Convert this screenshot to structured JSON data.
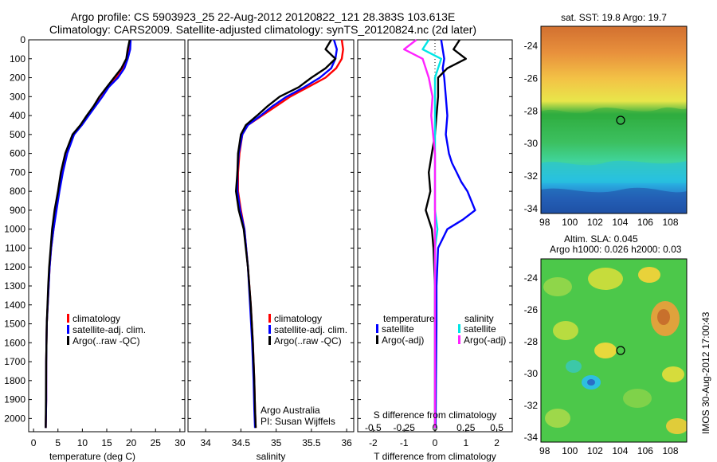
{
  "header": {
    "line1": "Argo profile: CS 5903923_25 22-Aug-2012 20120822_121 28.383S 103.613E",
    "line2": "Climatology: CARS2009. Satellite-adjusted climatology: synTS_20120824.nc (2d later)"
  },
  "colors": {
    "climatology": "#ff0000",
    "satellite": "#0000ff",
    "argo": "#000000",
    "sal_satellite": "#00e5e5",
    "sal_argo": "#ff22ff"
  },
  "depth_axis": {
    "ticks": [
      "0",
      "100",
      "200",
      "300",
      "400",
      "500",
      "600",
      "700",
      "800",
      "900",
      "1000",
      "1100",
      "1200",
      "1300",
      "1400",
      "1500",
      "1600",
      "1700",
      "1800",
      "1900",
      "2000"
    ],
    "ylim": [
      2070,
      0
    ]
  },
  "panels": {
    "temperature": {
      "xlabel": "temperature (deg C)",
      "xticks": [
        "0",
        "5",
        "10",
        "15",
        "20",
        "25",
        "30"
      ],
      "legend": [
        "climatology",
        "satellite-adj. clim.",
        "Argo(..raw -QC)"
      ]
    },
    "salinity": {
      "xlabel": "salinity",
      "xticks": [
        "34",
        "34.5",
        "35",
        "35.5",
        "36"
      ],
      "legend": [
        "climatology",
        "satellite-adj. clim.",
        "Argo(..raw -QC)"
      ],
      "note1": "Argo Australia",
      "note2": "PI: Susan Wijffels"
    },
    "difference": {
      "xlabel": "T difference from climatology",
      "xticks": [
        "-2",
        "-1",
        "0",
        "1",
        "2"
      ],
      "top_label": "S difference from climatology",
      "top_ticks": [
        "-0.5",
        "-0.25",
        "0",
        "0.25",
        "0.5"
      ],
      "legend_t_title": "temperature",
      "legend_s_title": "salinity",
      "legend_t": [
        "satellite",
        "Argo(-adj)"
      ],
      "legend_s": [
        "satellite",
        "Argo(-adj)"
      ]
    }
  },
  "maps": {
    "sst_title": "sat. SST: 19.8  Argo: 19.7",
    "sla_title1": "Altim. SLA: 0.045",
    "sla_title2": "Argo h1000: 0.026 h2000: 0.03",
    "yticks": [
      "-24",
      "-26",
      "-28",
      "-30",
      "-32",
      "-34"
    ],
    "xticks": [
      "98",
      "100",
      "102",
      "104",
      "106",
      "108"
    ]
  },
  "credit": "IMOS 30-Aug-2012 17:00:43",
  "chart_data": [
    {
      "type": "line",
      "panel": "temperature",
      "xlabel": "temperature (deg C)",
      "ylabel": "",
      "xlim": [
        -1,
        31
      ],
      "ylim": [
        2070,
        0
      ],
      "series": [
        {
          "name": "climatology",
          "x": [
            19.7,
            19.6,
            19.2,
            18.4,
            17.0,
            15.2,
            14.0,
            12.6,
            11.2,
            9.8,
            8.2,
            6.8,
            5.9,
            5.2,
            4.6,
            4.1,
            3.6,
            3.3,
            3.1,
            2.9,
            2.7,
            2.6,
            2.6,
            2.5
          ],
          "y": [
            0,
            50,
            100,
            150,
            200,
            250,
            300,
            350,
            400,
            450,
            500,
            600,
            700,
            800,
            900,
            1000,
            1100,
            1200,
            1300,
            1400,
            1500,
            1700,
            1900,
            2050
          ]
        },
        {
          "name": "satellite-adj. clim.",
          "x": [
            19.9,
            19.8,
            19.3,
            18.6,
            17.3,
            15.4,
            14.1,
            12.7,
            11.3,
            9.9,
            8.3,
            6.9,
            6.0,
            5.3,
            4.7,
            4.1,
            3.6,
            3.3,
            3.1,
            2.9,
            2.7,
            2.6,
            2.6,
            2.5
          ],
          "y": [
            0,
            50,
            100,
            150,
            200,
            250,
            300,
            350,
            400,
            450,
            500,
            600,
            700,
            800,
            900,
            1000,
            1100,
            1200,
            1300,
            1400,
            1500,
            1700,
            1900,
            2050
          ]
        },
        {
          "name": "Argo(..raw -QC)",
          "x": [
            19.7,
            19.3,
            19.0,
            18.0,
            16.5,
            15.0,
            13.5,
            12.3,
            10.9,
            9.6,
            8.0,
            6.5,
            5.6,
            5.0,
            4.3,
            3.8,
            3.5,
            3.2,
            3.0,
            2.85,
            2.7,
            2.6,
            2.55,
            2.5
          ],
          "y": [
            0,
            50,
            100,
            150,
            200,
            250,
            300,
            350,
            400,
            450,
            500,
            600,
            700,
            800,
            900,
            1000,
            1100,
            1200,
            1300,
            1400,
            1500,
            1700,
            1900,
            2050
          ]
        }
      ]
    },
    {
      "type": "line",
      "panel": "salinity",
      "xlabel": "salinity",
      "ylabel": "",
      "xlim": [
        33.75,
        36.1
      ],
      "ylim": [
        2070,
        0
      ],
      "series": [
        {
          "name": "climatology",
          "x": [
            35.93,
            35.95,
            35.93,
            35.85,
            35.7,
            35.45,
            35.2,
            35.0,
            34.8,
            34.6,
            34.52,
            34.48,
            34.46,
            34.46,
            34.5,
            34.55,
            34.6,
            34.64,
            34.67,
            34.69,
            34.7,
            34.71
          ],
          "y": [
            0,
            50,
            100,
            150,
            200,
            250,
            300,
            350,
            400,
            450,
            500,
            600,
            700,
            800,
            900,
            1000,
            1200,
            1400,
            1600,
            1800,
            1950,
            2050
          ]
        },
        {
          "name": "satellite-adj. clim.",
          "x": [
            35.82,
            35.86,
            35.84,
            35.78,
            35.62,
            35.4,
            35.15,
            34.95,
            34.78,
            34.6,
            34.52,
            34.47,
            34.45,
            34.45,
            34.49,
            34.55,
            34.6,
            34.63,
            34.66,
            34.68,
            34.69,
            34.7
          ],
          "y": [
            0,
            50,
            100,
            150,
            200,
            250,
            300,
            350,
            400,
            450,
            500,
            600,
            700,
            800,
            900,
            1000,
            1200,
            1400,
            1600,
            1800,
            1950,
            2050
          ]
        },
        {
          "name": "Argo(..raw -QC)",
          "x": [
            35.78,
            35.7,
            35.84,
            35.7,
            35.5,
            35.32,
            35.05,
            34.88,
            34.73,
            34.57,
            34.5,
            34.46,
            34.45,
            34.43,
            34.47,
            34.54,
            34.6,
            34.64,
            34.67,
            34.69,
            34.7,
            34.71
          ],
          "y": [
            0,
            50,
            100,
            150,
            200,
            250,
            300,
            350,
            400,
            450,
            500,
            600,
            700,
            800,
            900,
            1000,
            1200,
            1400,
            1600,
            1800,
            1950,
            2050
          ]
        }
      ]
    },
    {
      "type": "line",
      "panel": "difference",
      "xlabel": "T difference from climatology",
      "ylabel": "",
      "xlim": [
        -2.5,
        2.5
      ],
      "top_xlim": [
        -0.625,
        0.625
      ],
      "ylim": [
        2070,
        0
      ],
      "series": [
        {
          "name": "temperature satellite",
          "axis": "T",
          "x": [
            0.2,
            0.25,
            0.3,
            0.25,
            0.3,
            0.35,
            0.4,
            0.35,
            0.45,
            0.55,
            0.7,
            0.85,
            1.05,
            1.3,
            0.9,
            0.4,
            0.1,
            0.05,
            0.05,
            0.03,
            0.02
          ],
          "y": [
            0,
            50,
            100,
            150,
            200,
            300,
            400,
            500,
            600,
            650,
            700,
            750,
            800,
            900,
            950,
            1000,
            1100,
            1300,
            1500,
            1800,
            2050
          ]
        },
        {
          "name": "temperature Argo(-adj)",
          "axis": "T",
          "x": [
            0.8,
            0.6,
            1.0,
            0.4,
            0.1,
            0.1,
            0.05,
            0.0,
            -0.1,
            -0.2,
            -0.15,
            -0.3,
            -0.1,
            -0.05,
            0.0,
            0.0,
            0.0
          ],
          "y": [
            0,
            50,
            100,
            150,
            200,
            300,
            400,
            500,
            600,
            700,
            800,
            900,
            1000,
            1100,
            1300,
            1600,
            2050
          ]
        },
        {
          "name": "salinity satellite",
          "axis": "S",
          "x": [
            -0.05,
            -0.1,
            0.05,
            0.0,
            0.0,
            0.0,
            0.0,
            0.0,
            0.0,
            0.02,
            0.0,
            0.0,
            0.0,
            0.0
          ],
          "y": [
            0,
            50,
            100,
            200,
            300,
            400,
            600,
            800,
            900,
            1000,
            1100,
            1300,
            1600,
            2050
          ]
        },
        {
          "name": "salinity Argo(-adj)",
          "axis": "S",
          "x": [
            -0.15,
            -0.25,
            -0.1,
            -0.05,
            -0.02,
            -0.03,
            0.0,
            0.0,
            0.0,
            0.0,
            0.0,
            0.0
          ],
          "y": [
            0,
            50,
            100,
            200,
            300,
            400,
            600,
            800,
            1000,
            1300,
            1600,
            2050
          ]
        }
      ]
    },
    {
      "type": "heatmap",
      "panel": "sst-map",
      "title": "sat. SST: 19.8  Argo: 19.7",
      "xlim": [
        97.7,
        109.3
      ],
      "ylim": [
        -34.3,
        -22.8
      ],
      "gradient": [
        [
          "-23",
          "#d27030"
        ],
        [
          "-25",
          "#ef9a40"
        ],
        [
          "-27",
          "#f4e04a"
        ],
        [
          "-28",
          "#2fad3f"
        ],
        [
          "-30",
          "#3fc462"
        ],
        [
          "-32",
          "#28c4e6"
        ],
        [
          "-34",
          "#1e4fa0"
        ]
      ],
      "marker": {
        "lon": 103.613,
        "lat": -28.383
      }
    },
    {
      "type": "heatmap",
      "panel": "sla-map",
      "title": "Altim. SLA: 0.045",
      "xlim": [
        97.7,
        109.3
      ],
      "ylim": [
        -34.3,
        -22.8
      ],
      "marker": {
        "lon": 103.613,
        "lat": -28.383
      }
    }
  ]
}
